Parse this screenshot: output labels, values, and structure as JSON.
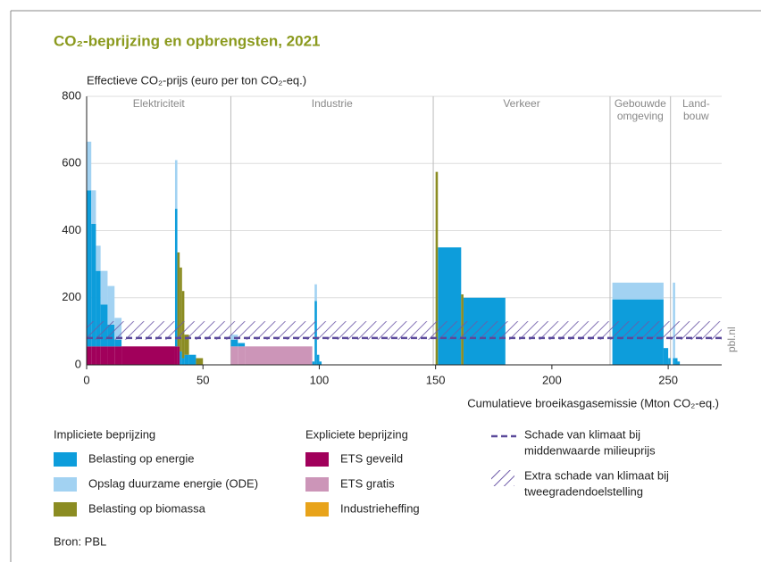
{
  "chart_data": {
    "type": "stacked_histogram",
    "title": "CO₂-beprijzing en opbrengsten, 2021",
    "y_label": "Effectieve CO₂-prijs (euro per ton CO₂-eq.)",
    "x_label": "Cumulatieve broeikasgasemissie (Mton CO₂-eq.)",
    "xlim": [
      0,
      273
    ],
    "xticks": [
      0,
      50,
      100,
      150,
      200,
      250
    ],
    "ylim": [
      0,
      800
    ],
    "yticks": [
      0,
      200,
      400,
      600,
      800
    ],
    "grid": true,
    "sectors": [
      {
        "label": [
          "Elektriciteit"
        ],
        "start": 0
      },
      {
        "label": [
          "Industrie"
        ],
        "start": 62
      },
      {
        "label": [
          "Verkeer"
        ],
        "start": 149
      },
      {
        "label": [
          "Gebouwde",
          "omgeving"
        ],
        "start": 225
      },
      {
        "label": [
          "Land-",
          "bouw"
        ],
        "start": 251
      }
    ],
    "bins": [
      0,
      2,
      4,
      6,
      9,
      12,
      15,
      38,
      39,
      40,
      41,
      42,
      44,
      47,
      50,
      62,
      65,
      68,
      97,
      98,
      99,
      100,
      101,
      150,
      151,
      161,
      162,
      163,
      180,
      226,
      248,
      250,
      251,
      252,
      253,
      254,
      255,
      273
    ],
    "series_groups": [
      {
        "title": "Expliciete beprijzing",
        "series": [
          {
            "name": "ETS geveild",
            "color": "#a1005b",
            "values": [
              55,
              55,
              55,
              55,
              55,
              55,
              55,
              55,
              55,
              0,
              0,
              0,
              0,
              0,
              0,
              0,
              0,
              0,
              0,
              0,
              0,
              0,
              0,
              0,
              0,
              0,
              0,
              0,
              0,
              0,
              0,
              0,
              0,
              0,
              0,
              0,
              0
            ]
          },
          {
            "name": "ETS gratis",
            "color": "#cc95b8",
            "values": [
              0,
              0,
              0,
              0,
              0,
              0,
              0,
              0,
              0,
              0,
              0,
              0,
              0,
              0,
              0,
              55,
              55,
              55,
              0,
              0,
              0,
              0,
              0,
              0,
              0,
              0,
              0,
              0,
              0,
              0,
              0,
              0,
              0,
              0,
              0,
              0,
              0
            ]
          },
          {
            "name": "Industrieheffing",
            "color": "#e8a31a",
            "values": [
              0,
              0,
              0,
              0,
              0,
              0,
              0,
              0,
              0,
              0,
              0,
              0,
              0,
              0,
              0,
              0,
              0,
              0,
              0,
              0,
              0,
              0,
              0,
              0,
              0,
              0,
              0,
              0,
              0,
              0,
              0,
              0,
              0,
              0,
              0,
              0,
              0
            ]
          }
        ]
      },
      {
        "title": "Impliciete beprijzing",
        "series": [
          {
            "name": "Belasting op energie",
            "color": "#0d9ddb",
            "values": [
              465,
              365,
              225,
              125,
              65,
              20,
              0,
              410,
              0,
              40,
              20,
              30,
              30,
              0,
              0,
              20,
              10,
              0,
              10,
              190,
              30,
              10,
              0,
              0,
              350,
              0,
              200,
              200,
              0,
              195,
              50,
              20,
              0,
              20,
              20,
              10,
              0
            ]
          },
          {
            "name": "Opslag duurzame energie (ODE)",
            "color": "#a2d2f2",
            "values": [
              145,
              100,
              75,
              100,
              115,
              65,
              0,
              145,
              0,
              0,
              0,
              0,
              0,
              0,
              0,
              15,
              0,
              0,
              0,
              50,
              0,
              0,
              0,
              0,
              0,
              0,
              0,
              0,
              0,
              50,
              0,
              0,
              0,
              225,
              0,
              0,
              0
            ]
          },
          {
            "name": "Belasting op biomassa",
            "color": "#8b8c22",
            "values": [
              0,
              0,
              0,
              0,
              0,
              0,
              0,
              0,
              280,
              250,
              200,
              60,
              0,
              20,
              0,
              0,
              0,
              0,
              0,
              0,
              0,
              0,
              0,
              575,
              0,
              210,
              0,
              0,
              0,
              0,
              0,
              0,
              0,
              0,
              0,
              0,
              0
            ]
          }
        ]
      }
    ],
    "damage_line": {
      "value": 80,
      "color": "#5b4a9b",
      "label": [
        "Schade van klimaat bij",
        "middenwaarde milieuprijs"
      ]
    },
    "damage_band": {
      "range": [
        75,
        130
      ],
      "color": "#6e5aa8",
      "label": [
        "Extra schade van klimaat bij",
        "tweegradendoelstelling"
      ]
    },
    "watermark": "pbl.nl",
    "source": "Bron: PBL"
  }
}
